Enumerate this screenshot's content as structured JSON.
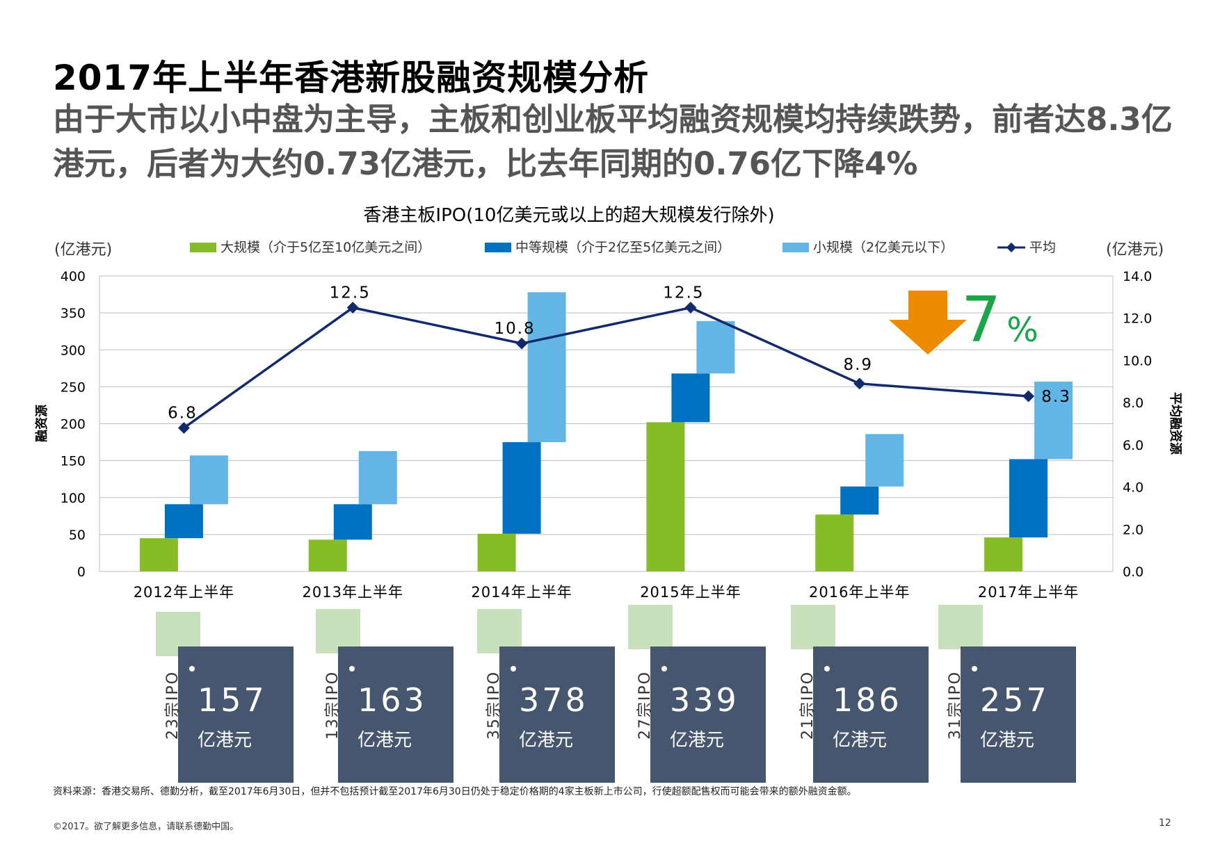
{
  "title": "2017年上半年香港新股融资规模分析",
  "subtitle": "由于大市以小中盘为主导，主板和创业板平均融资规模均持续跌势，前者达8.3亿港元，后者为大约0.73亿港元，比去年同期的0.76亿下降4%",
  "chart_data": {
    "type": "bar",
    "title": "香港主板IPO(10亿美元或以上的超大规模发行除外)",
    "categories": [
      "2012年上半年",
      "2013年上半年",
      "2014年上半年",
      "2015年上半年",
      "2016年上半年",
      "2017年上半年"
    ],
    "left_unit": "(亿港元)",
    "right_unit": "(亿港元)",
    "ylabel": "融资源",
    "y2label": "平均融资源",
    "ylim": [
      0,
      400
    ],
    "y2lim": [
      0,
      14
    ],
    "yticks": [
      "0",
      "50",
      "100",
      "150",
      "200",
      "250",
      "300",
      "350",
      "400"
    ],
    "y2ticks": [
      "0.0",
      "2.0",
      "4.0",
      "6.0",
      "8.0",
      "10.0",
      "12.0",
      "14.0"
    ],
    "series": [
      {
        "name": "大规模（介于5亿至10亿美元之间）",
        "color": "#86bc25",
        "values": [
          45,
          43,
          51,
          202,
          77,
          46
        ]
      },
      {
        "name": "中等规模（介于2亿至5亿美元之间）",
        "color": "#0070c0",
        "values": [
          46,
          48,
          124,
          66,
          38,
          106
        ]
      },
      {
        "name": "小规模（2亿美元以下）",
        "color": "#62b5e5",
        "values": [
          66,
          72,
          203,
          71,
          71,
          105
        ]
      }
    ],
    "line": {
      "name": "平均",
      "color": "#112a6b",
      "values": [
        6.8,
        12.5,
        10.8,
        12.5,
        8.9,
        8.3
      ],
      "labels": [
        "6.8",
        "12.5",
        "10.8",
        "12.5",
        "8.9",
        "8.3"
      ]
    },
    "annotation": {
      "arrow_color": "#ed8b00",
      "value": "7",
      "unit": "%"
    }
  },
  "cards": [
    {
      "count": "23宗IPO",
      "amount": "157",
      "unit": "亿港元"
    },
    {
      "count": "13宗IPO",
      "amount": "163",
      "unit": "亿港元"
    },
    {
      "count": "35宗IPO",
      "amount": "378",
      "unit": "亿港元"
    },
    {
      "count": "27宗IPO",
      "amount": "339",
      "unit": "亿港元"
    },
    {
      "count": "21宗IPO",
      "amount": "186",
      "unit": "亿港元"
    },
    {
      "count": "31宗IPO",
      "amount": "257",
      "unit": "亿港元"
    }
  ],
  "source": "资料来源：香港交易所、德勤分析，截至2017年6月30日，但并不包括预计截至2017年6月30日仍处于稳定价格期的4家主板新上市公司，行使超额配售权而可能会带来的额外融资金额。",
  "copyright": "©2017。欲了解更多信息，请联系德勤中国。",
  "page_number": "12"
}
